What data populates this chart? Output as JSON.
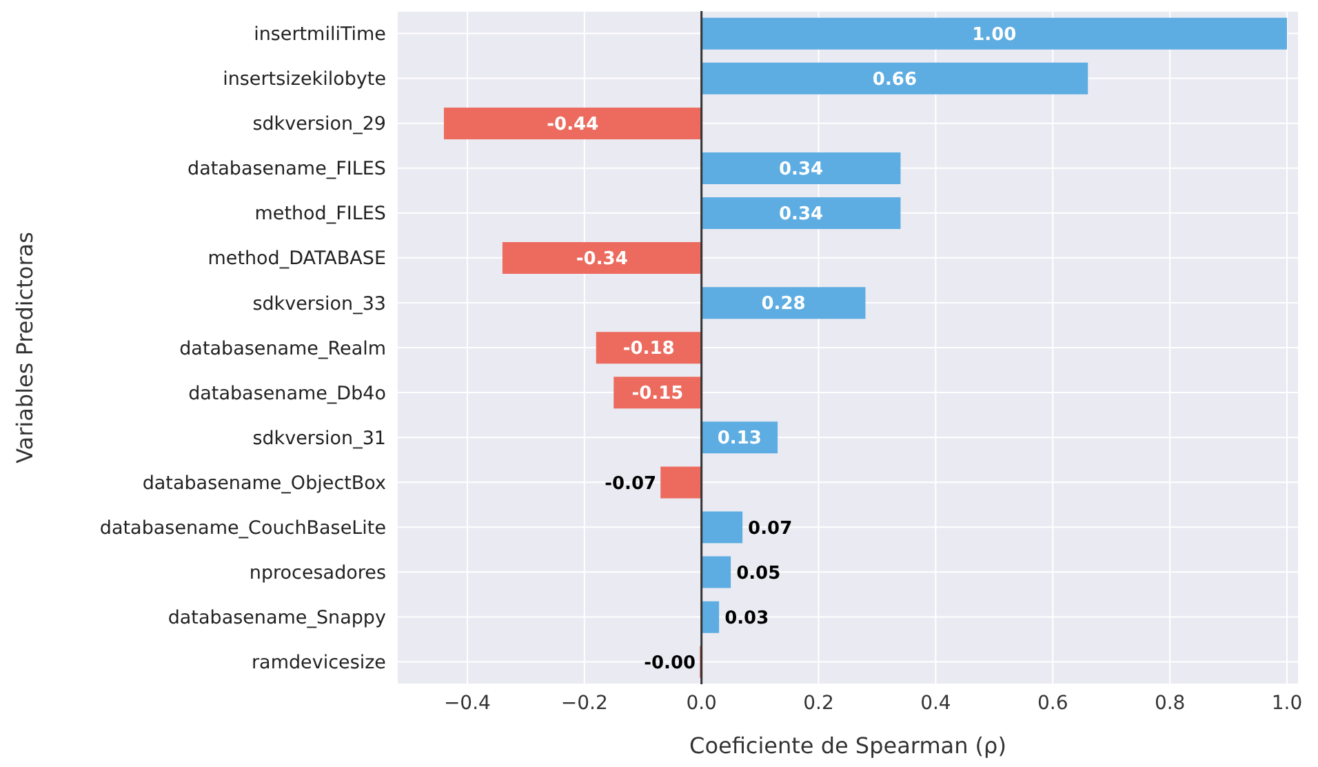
{
  "chart_data": {
    "type": "bar",
    "orientation": "horizontal",
    "xlabel": "Coeficiente de Spearman (ρ)",
    "ylabel": "Variables Predictoras",
    "categories": [
      "insertmiliTime",
      "insertsizekilobyte",
      "sdkversion_29",
      "databasename_FILES",
      "method_FILES",
      "method_DATABASE",
      "sdkversion_33",
      "databasename_Realm",
      "databasename_Db4o",
      "sdkversion_31",
      "databasename_ObjectBox",
      "databasename_CouchBaseLite",
      "nprocesadores",
      "databasename_Snappy",
      "ramdevicesize"
    ],
    "values": [
      1.0,
      0.66,
      -0.44,
      0.34,
      0.34,
      -0.34,
      0.28,
      -0.18,
      -0.15,
      0.13,
      -0.07,
      0.07,
      0.05,
      0.03,
      -0.003
    ],
    "value_labels": [
      "1.00",
      "0.66",
      "-0.44",
      "0.34",
      "0.34",
      "-0.34",
      "0.28",
      "-0.18",
      "-0.15",
      "0.13",
      "-0.07",
      "0.07",
      "0.05",
      "0.03",
      "-0.00"
    ],
    "colors": [
      "#5dade2",
      "#5dade2",
      "#ec6b5e",
      "#5dade2",
      "#5dade2",
      "#ec6b5e",
      "#5dade2",
      "#ec6b5e",
      "#ec6b5e",
      "#5dade2",
      "#ec6b5e",
      "#5dade2",
      "#5dade2",
      "#5dade2",
      "#ec6b5e"
    ],
    "xlim": [
      -0.52,
      1.02
    ],
    "xticks": [
      {
        "value": -0.4,
        "label": "−0.4"
      },
      {
        "value": -0.2,
        "label": "−0.2"
      },
      {
        "value": 0,
        "label": "0.0"
      },
      {
        "value": 0.2,
        "label": "0.2"
      },
      {
        "value": 0.4,
        "label": "0.4"
      },
      {
        "value": 0.6,
        "label": "0.6"
      },
      {
        "value": 0.8,
        "label": "0.8"
      },
      {
        "value": 1,
        "label": "1.0"
      }
    ],
    "ref_lines": [
      {
        "axis": "x",
        "value": 0,
        "color": "#333333"
      }
    ],
    "grid": true
  }
}
